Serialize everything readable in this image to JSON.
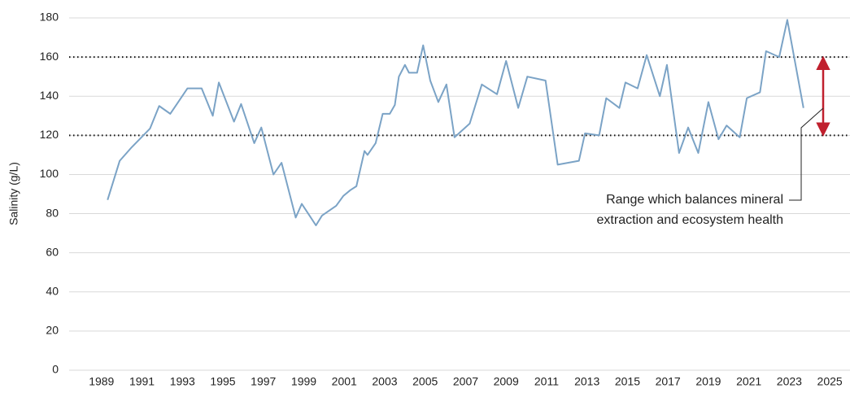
{
  "chart_data": {
    "type": "line",
    "y_label": "Salinity (g/L)",
    "annotation": [
      "Range which balances mineral",
      "extraction and ecosystem health"
    ],
    "hlines": [
      120,
      160
    ],
    "color": "#7ba3c6",
    "grid": true,
    "xlim": [
      1987.4,
      2026.0
    ],
    "xticks": [
      1989,
      1991,
      1993,
      1995,
      1997,
      1999,
      2001,
      2003,
      2005,
      2007,
      2009,
      2011,
      2013,
      2015,
      2017,
      2019,
      2021,
      2023,
      2025
    ],
    "ylim": [
      0,
      180
    ],
    "yticks": [
      0,
      20,
      40,
      60,
      80,
      100,
      120,
      140,
      160,
      180
    ],
    "series": [
      {
        "name": "Salinity",
        "x": [
          1989.3,
          1989.9,
          1990.5,
          1991.4,
          1991.85,
          1992.4,
          1993.25,
          1993.95,
          1994.5,
          1994.8,
          1995.55,
          1995.9,
          1996.55,
          1996.9,
          1997.5,
          1997.9,
          1998.6,
          1998.9,
          1999.6,
          1999.9,
          2000.6,
          2000.95,
          2001.3,
          2001.6,
          2002.0,
          2002.15,
          2002.55,
          2002.9,
          2003.25,
          2003.5,
          2003.7,
          2004.0,
          2004.2,
          2004.6,
          2004.9,
          2005.25,
          2005.65,
          2006.05,
          2006.45,
          2007.2,
          2007.8,
          2008.55,
          2009.0,
          2009.6,
          2010.05,
          2010.95,
          2011.55,
          2012.6,
          2012.9,
          2013.6,
          2013.95,
          2014.6,
          2014.9,
          2015.5,
          2015.95,
          2016.6,
          2016.95,
          2017.55,
          2018.0,
          2018.5,
          2019.0,
          2019.5,
          2019.9,
          2020.55,
          2020.9,
          2021.55,
          2021.85,
          2022.5,
          2022.9,
          2023.7
        ],
        "values": [
          87,
          107,
          114,
          123.5,
          135,
          131,
          144,
          144,
          130,
          147,
          127,
          136,
          116,
          124,
          100,
          106,
          78,
          85,
          74,
          79,
          84,
          89,
          92,
          94,
          112,
          110,
          116,
          131,
          131,
          135.5,
          150,
          156,
          152,
          152,
          166,
          148,
          137,
          146,
          119,
          126,
          146,
          141,
          158,
          134,
          150,
          148,
          105,
          107,
          121,
          120,
          139,
          134,
          147,
          144,
          161,
          140,
          156,
          111,
          124,
          111,
          137,
          118,
          125,
          119,
          139,
          142,
          163,
          160,
          179,
          134
        ]
      }
    ]
  }
}
